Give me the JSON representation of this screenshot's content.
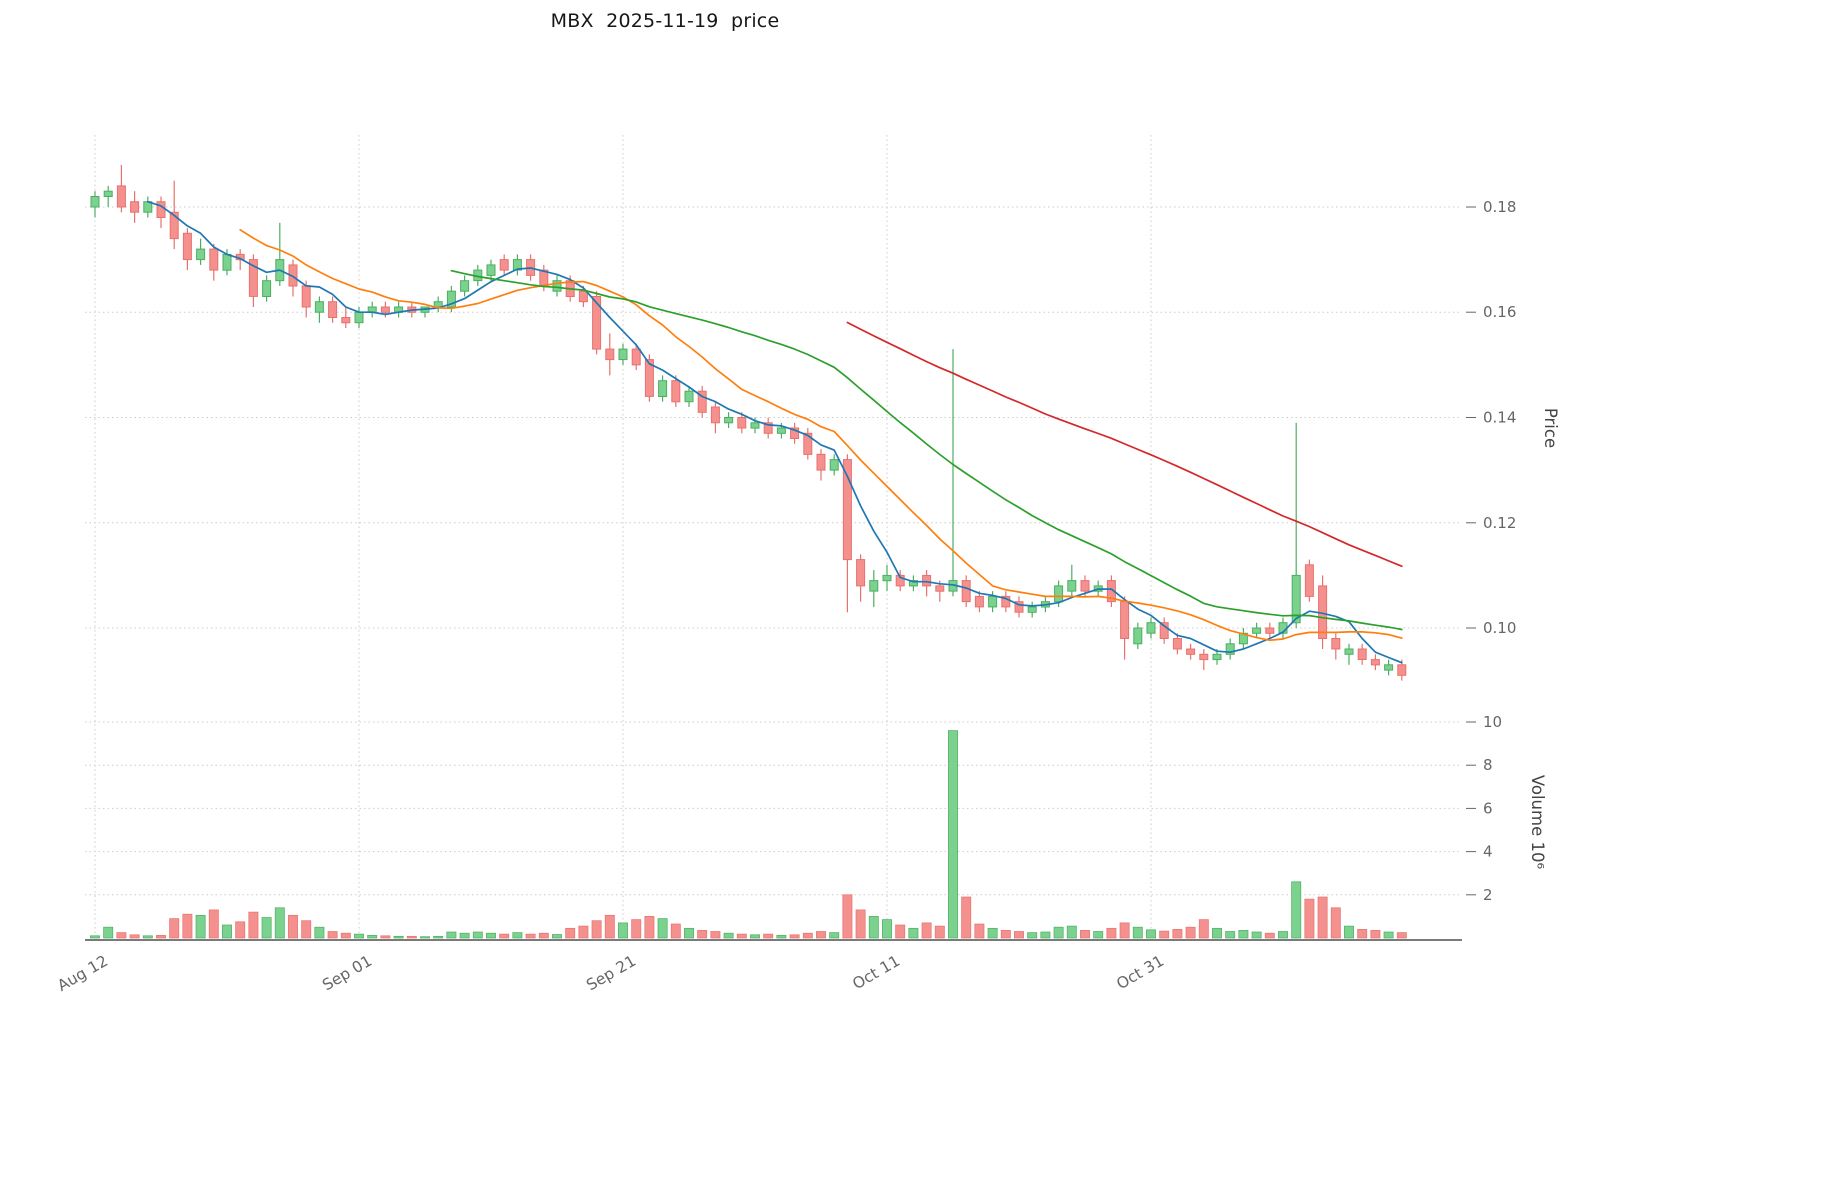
{
  "chart_data": {
    "type": "candlestick",
    "title": "MBX  2025-11-19  price",
    "symbol": "MBX",
    "as_of_date": "2025-11-19",
    "ylabel": "Price",
    "ylabel_volume": "Volume  10⁶",
    "price_ticks": [
      0.1,
      0.12,
      0.14,
      0.16,
      0.18
    ],
    "price_tick_labels": [
      "0.10",
      "0.12",
      "0.14",
      "0.16",
      "0.18"
    ],
    "volume_ticks": [
      2,
      4,
      6,
      8,
      10
    ],
    "volume_tick_labels": [
      "2",
      "4",
      "6",
      "8",
      "10"
    ],
    "x_tick_indices": [
      0,
      20,
      40,
      60,
      80
    ],
    "x_tick_labels": [
      "Aug 12",
      "Sep 01",
      "Sep 21",
      "Oct 11",
      "Oct 31"
    ],
    "price_range": [
      0.088,
      0.194
    ],
    "volume_range": [
      0,
      10.8
    ],
    "grid": true,
    "legend": "none",
    "moving_averages": [
      {
        "name": "ma-fast",
        "window": 5,
        "color": "#1f77b4"
      },
      {
        "name": "ma-medium",
        "window": 12,
        "color": "#ff7f0e"
      },
      {
        "name": "ma-slow",
        "window": 28,
        "color": "#2ca02c"
      },
      {
        "name": "ma-long",
        "window": 58,
        "color": "#d62728"
      }
    ],
    "colors": {
      "up_fill": "#7bd28e",
      "up_edge": "#4cae61",
      "down_fill": "#f4918e",
      "down_edge": "#e8716d",
      "grid": "#cccccc",
      "axis_text": "#666666",
      "axis_line": "#2b2b2b",
      "title_text": "#171717"
    },
    "columns": [
      "date",
      "open",
      "high",
      "low",
      "close",
      "volume_millions"
    ],
    "candles": [
      [
        "2025-08-12",
        0.18,
        0.183,
        0.178,
        0.182,
        0.1
      ],
      [
        "2025-08-13",
        0.182,
        0.184,
        0.18,
        0.183,
        0.5
      ],
      [
        "2025-08-14",
        0.184,
        0.188,
        0.179,
        0.18,
        0.25
      ],
      [
        "2025-08-15",
        0.181,
        0.183,
        0.177,
        0.179,
        0.15
      ],
      [
        "2025-08-16",
        0.179,
        0.182,
        0.178,
        0.181,
        0.1
      ],
      [
        "2025-08-17",
        0.181,
        0.182,
        0.176,
        0.178,
        0.12
      ],
      [
        "2025-08-18",
        0.179,
        0.185,
        0.172,
        0.174,
        0.9
      ],
      [
        "2025-08-19",
        0.175,
        0.176,
        0.168,
        0.17,
        1.1
      ],
      [
        "2025-08-20",
        0.17,
        0.174,
        0.169,
        0.172,
        1.05
      ],
      [
        "2025-08-21",
        0.172,
        0.173,
        0.166,
        0.168,
        1.3
      ],
      [
        "2025-08-22",
        0.168,
        0.172,
        0.167,
        0.171,
        0.6
      ],
      [
        "2025-08-23",
        0.171,
        0.172,
        0.168,
        0.17,
        0.75
      ],
      [
        "2025-08-24",
        0.17,
        0.171,
        0.161,
        0.163,
        1.2
      ],
      [
        "2025-08-25",
        0.163,
        0.167,
        0.162,
        0.166,
        0.95
      ],
      [
        "2025-08-26",
        0.166,
        0.177,
        0.165,
        0.17,
        1.4
      ],
      [
        "2025-08-27",
        0.169,
        0.17,
        0.163,
        0.165,
        1.05
      ],
      [
        "2025-08-28",
        0.165,
        0.166,
        0.159,
        0.161,
        0.8
      ],
      [
        "2025-08-29",
        0.16,
        0.163,
        0.158,
        0.162,
        0.5
      ],
      [
        "2025-08-30",
        0.162,
        0.163,
        0.158,
        0.159,
        0.3
      ],
      [
        "2025-08-31",
        0.159,
        0.161,
        0.157,
        0.158,
        0.22
      ],
      [
        "2025-09-01",
        0.158,
        0.161,
        0.157,
        0.16,
        0.18
      ],
      [
        "2025-09-02",
        0.16,
        0.162,
        0.159,
        0.161,
        0.12
      ],
      [
        "2025-09-03",
        0.161,
        0.162,
        0.159,
        0.16,
        0.1
      ],
      [
        "2025-09-04",
        0.16,
        0.162,
        0.159,
        0.161,
        0.08
      ],
      [
        "2025-09-05",
        0.161,
        0.162,
        0.159,
        0.16,
        0.08
      ],
      [
        "2025-09-06",
        0.16,
        0.161,
        0.159,
        0.161,
        0.06
      ],
      [
        "2025-09-07",
        0.161,
        0.163,
        0.16,
        0.162,
        0.08
      ],
      [
        "2025-09-08",
        0.161,
        0.165,
        0.16,
        0.164,
        0.28
      ],
      [
        "2025-09-09",
        0.164,
        0.167,
        0.163,
        0.166,
        0.22
      ],
      [
        "2025-09-10",
        0.166,
        0.169,
        0.165,
        0.168,
        0.28
      ],
      [
        "2025-09-11",
        0.167,
        0.17,
        0.166,
        0.169,
        0.22
      ],
      [
        "2025-09-12",
        0.17,
        0.171,
        0.167,
        0.168,
        0.18
      ],
      [
        "2025-09-13",
        0.168,
        0.171,
        0.167,
        0.17,
        0.25
      ],
      [
        "2025-09-14",
        0.17,
        0.171,
        0.166,
        0.167,
        0.18
      ],
      [
        "2025-09-15",
        0.168,
        0.169,
        0.164,
        0.165,
        0.22
      ],
      [
        "2025-09-16",
        0.164,
        0.167,
        0.163,
        0.166,
        0.16
      ],
      [
        "2025-09-17",
        0.166,
        0.167,
        0.162,
        0.163,
        0.45
      ],
      [
        "2025-09-18",
        0.164,
        0.165,
        0.161,
        0.162,
        0.55
      ],
      [
        "2025-09-19",
        0.163,
        0.164,
        0.152,
        0.153,
        0.8
      ],
      [
        "2025-09-20",
        0.153,
        0.156,
        0.148,
        0.151,
        1.05
      ],
      [
        "2025-09-21",
        0.151,
        0.154,
        0.15,
        0.153,
        0.7
      ],
      [
        "2025-09-22",
        0.153,
        0.154,
        0.149,
        0.15,
        0.85
      ],
      [
        "2025-09-23",
        0.151,
        0.152,
        0.143,
        0.144,
        1.0
      ],
      [
        "2025-09-24",
        0.144,
        0.148,
        0.143,
        0.147,
        0.9
      ],
      [
        "2025-09-25",
        0.147,
        0.148,
        0.142,
        0.143,
        0.65
      ],
      [
        "2025-09-26",
        0.143,
        0.146,
        0.142,
        0.145,
        0.45
      ],
      [
        "2025-09-27",
        0.145,
        0.146,
        0.14,
        0.141,
        0.35
      ],
      [
        "2025-09-28",
        0.142,
        0.143,
        0.137,
        0.139,
        0.3
      ],
      [
        "2025-09-29",
        0.139,
        0.141,
        0.138,
        0.14,
        0.22
      ],
      [
        "2025-09-30",
        0.14,
        0.141,
        0.137,
        0.138,
        0.18
      ],
      [
        "2025-10-01",
        0.138,
        0.14,
        0.137,
        0.139,
        0.15
      ],
      [
        "2025-10-02",
        0.139,
        0.14,
        0.136,
        0.137,
        0.18
      ],
      [
        "2025-10-03",
        0.137,
        0.139,
        0.136,
        0.138,
        0.12
      ],
      [
        "2025-10-04",
        0.138,
        0.139,
        0.135,
        0.136,
        0.15
      ],
      [
        "2025-10-05",
        0.137,
        0.138,
        0.132,
        0.133,
        0.22
      ],
      [
        "2025-10-06",
        0.133,
        0.134,
        0.128,
        0.13,
        0.3
      ],
      [
        "2025-10-07",
        0.13,
        0.133,
        0.129,
        0.132,
        0.25
      ],
      [
        "2025-10-08",
        0.132,
        0.133,
        0.103,
        0.113,
        2.0
      ],
      [
        "2025-10-09",
        0.113,
        0.114,
        0.105,
        0.108,
        1.3
      ],
      [
        "2025-10-10",
        0.107,
        0.111,
        0.104,
        0.109,
        1.0
      ],
      [
        "2025-10-11",
        0.109,
        0.112,
        0.107,
        0.11,
        0.85
      ],
      [
        "2025-10-12",
        0.11,
        0.111,
        0.107,
        0.108,
        0.6
      ],
      [
        "2025-10-13",
        0.108,
        0.11,
        0.107,
        0.109,
        0.45
      ],
      [
        "2025-10-14",
        0.11,
        0.111,
        0.106,
        0.108,
        0.7
      ],
      [
        "2025-10-15",
        0.108,
        0.109,
        0.105,
        0.107,
        0.55
      ],
      [
        "2025-10-16",
        0.107,
        0.153,
        0.106,
        0.109,
        9.6
      ],
      [
        "2025-10-17",
        0.109,
        0.11,
        0.104,
        0.105,
        1.9
      ],
      [
        "2025-10-18",
        0.106,
        0.107,
        0.103,
        0.104,
        0.65
      ],
      [
        "2025-10-19",
        0.104,
        0.107,
        0.103,
        0.106,
        0.45
      ],
      [
        "2025-10-20",
        0.106,
        0.107,
        0.103,
        0.104,
        0.35
      ],
      [
        "2025-10-21",
        0.105,
        0.106,
        0.102,
        0.103,
        0.3
      ],
      [
        "2025-10-22",
        0.103,
        0.105,
        0.102,
        0.104,
        0.25
      ],
      [
        "2025-10-23",
        0.104,
        0.106,
        0.103,
        0.105,
        0.28
      ],
      [
        "2025-10-24",
        0.105,
        0.109,
        0.104,
        0.108,
        0.5
      ],
      [
        "2025-10-25",
        0.107,
        0.112,
        0.106,
        0.109,
        0.55
      ],
      [
        "2025-10-26",
        0.109,
        0.11,
        0.106,
        0.107,
        0.35
      ],
      [
        "2025-10-27",
        0.107,
        0.109,
        0.106,
        0.108,
        0.3
      ],
      [
        "2025-10-28",
        0.109,
        0.11,
        0.104,
        0.105,
        0.45
      ],
      [
        "2025-10-29",
        0.105,
        0.106,
        0.094,
        0.098,
        0.7
      ],
      [
        "2025-10-30",
        0.097,
        0.101,
        0.096,
        0.1,
        0.5
      ],
      [
        "2025-10-31",
        0.099,
        0.102,
        0.098,
        0.101,
        0.38
      ],
      [
        "2025-11-01",
        0.101,
        0.102,
        0.097,
        0.098,
        0.32
      ],
      [
        "2025-11-02",
        0.098,
        0.099,
        0.095,
        0.096,
        0.4
      ],
      [
        "2025-11-03",
        0.096,
        0.097,
        0.094,
        0.095,
        0.5
      ],
      [
        "2025-11-04",
        0.095,
        0.096,
        0.092,
        0.094,
        0.85
      ],
      [
        "2025-11-05",
        0.094,
        0.096,
        0.093,
        0.095,
        0.45
      ],
      [
        "2025-11-06",
        0.095,
        0.098,
        0.094,
        0.097,
        0.3
      ],
      [
        "2025-11-07",
        0.097,
        0.1,
        0.096,
        0.099,
        0.35
      ],
      [
        "2025-11-08",
        0.099,
        0.101,
        0.098,
        0.1,
        0.28
      ],
      [
        "2025-11-09",
        0.1,
        0.101,
        0.098,
        0.099,
        0.22
      ],
      [
        "2025-11-10",
        0.099,
        0.102,
        0.098,
        0.101,
        0.3
      ],
      [
        "2025-11-11",
        0.101,
        0.139,
        0.1,
        0.11,
        2.6
      ],
      [
        "2025-11-12",
        0.112,
        0.113,
        0.105,
        0.106,
        1.8
      ],
      [
        "2025-11-13",
        0.108,
        0.11,
        0.096,
        0.098,
        1.9
      ],
      [
        "2025-11-14",
        0.098,
        0.099,
        0.094,
        0.096,
        1.4
      ],
      [
        "2025-11-15",
        0.095,
        0.097,
        0.093,
        0.096,
        0.55
      ],
      [
        "2025-11-16",
        0.096,
        0.097,
        0.093,
        0.094,
        0.4
      ],
      [
        "2025-11-17",
        0.094,
        0.095,
        0.092,
        0.093,
        0.35
      ],
      [
        "2025-11-18",
        0.092,
        0.094,
        0.091,
        0.093,
        0.28
      ],
      [
        "2025-11-19",
        0.093,
        0.094,
        0.09,
        0.091,
        0.25
      ]
    ]
  }
}
